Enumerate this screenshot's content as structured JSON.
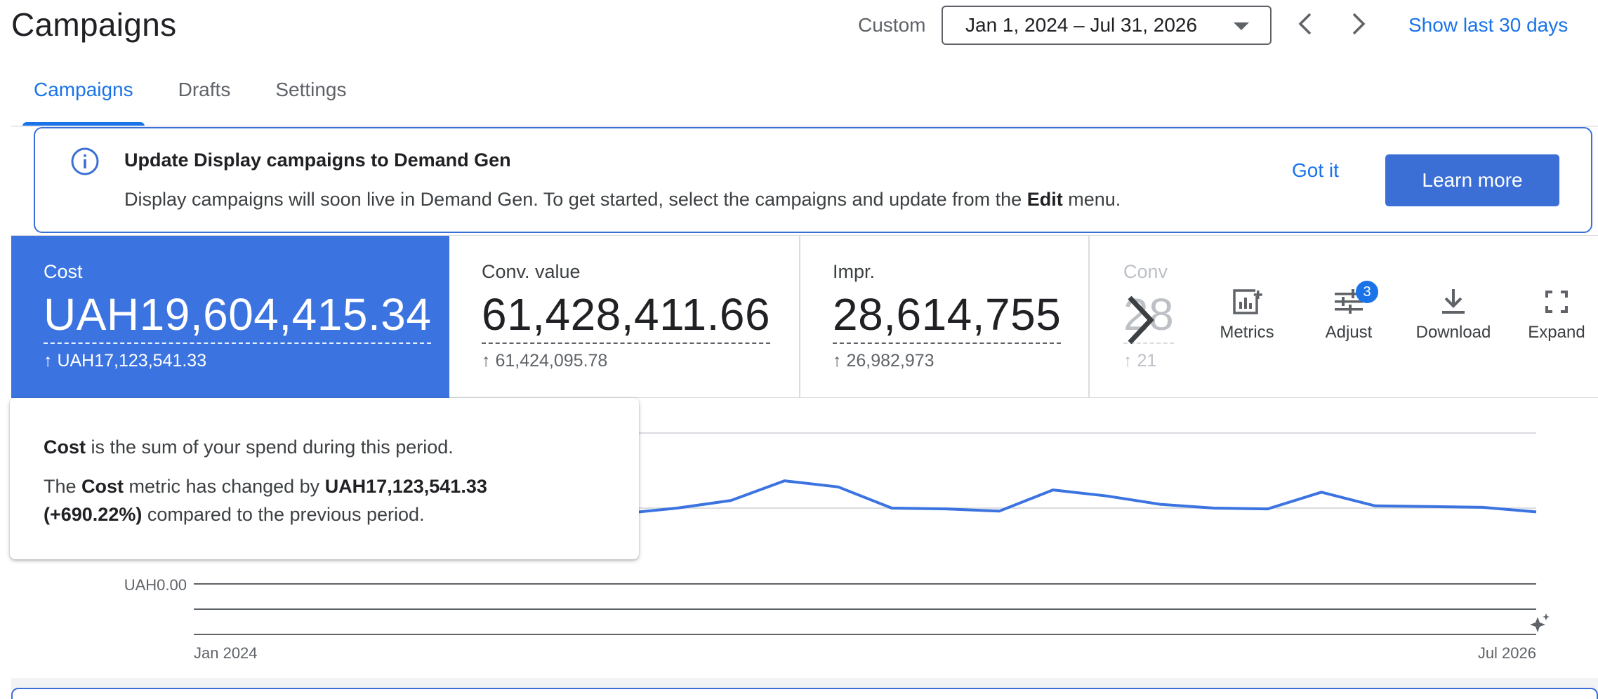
{
  "header": {
    "title": "Campaigns",
    "custom_label": "Custom",
    "date_range": "Jan 1, 2024 – Jul 31, 2026",
    "show_last": "Show last 30 days"
  },
  "tabs": [
    {
      "label": "Campaigns",
      "active": true
    },
    {
      "label": "Drafts",
      "active": false
    },
    {
      "label": "Settings",
      "active": false
    }
  ],
  "banner": {
    "title": "Update Display campaigns to Demand Gen",
    "body_prefix": "Display campaigns will soon live in Demand Gen. To get started, select the campaigns and update from the ",
    "body_bold": "Edit",
    "body_suffix": " menu.",
    "dismiss_label": "Got it",
    "cta_label": "Learn more"
  },
  "scorecards": [
    {
      "label": "Cost",
      "value": "UAH19,604,415.34",
      "delta": "UAH17,123,541.33",
      "selected": true
    },
    {
      "label": "Conv. value",
      "value": "61,428,411.66",
      "delta": "61,424,095.78",
      "selected": false
    },
    {
      "label": "Impr.",
      "value": "28,614,755",
      "delta": "26,982,973",
      "selected": false
    },
    {
      "label": "Conv",
      "value": "28",
      "delta": "21",
      "selected": false
    }
  ],
  "toolbar": {
    "metrics_label": "Metrics",
    "adjust_label": "Adjust",
    "adjust_badge": "3",
    "download_label": "Download",
    "expand_label": "Expand"
  },
  "tooltip": {
    "line1_bold": "Cost",
    "line1_rest": " is the sum of your spend during this period.",
    "line2_prefix": "The ",
    "line2_bold_metric": "Cost",
    "line2_mid": " metric has changed by ",
    "line2_bold_amount": "UAH17,123,541.33",
    "line2_bold_pct": "(+690.22%)",
    "line2_suffix": " compared to the previous period."
  },
  "chart_data": {
    "type": "line",
    "x_labels": [
      "Jan 2024",
      "Jul 2026"
    ],
    "y_tick_label": "UAH0.00",
    "series": [
      {
        "color": "#3b73e0",
        "values": [
          0.99,
          0.98,
          1.0,
          0.96,
          0.9,
          0.85,
          0.94,
          0.78,
          0.93,
          1.0,
          1.1,
          1.36,
          1.28,
          1.0,
          0.99,
          0.96,
          1.24,
          1.16,
          1.05,
          1.0,
          0.99,
          1.21,
          1.03,
          1.02,
          1.01,
          0.95
        ]
      }
    ],
    "grid": true,
    "legend": "none",
    "colors": {
      "accent": "#1a73e8",
      "series": "#3b73e0"
    }
  }
}
